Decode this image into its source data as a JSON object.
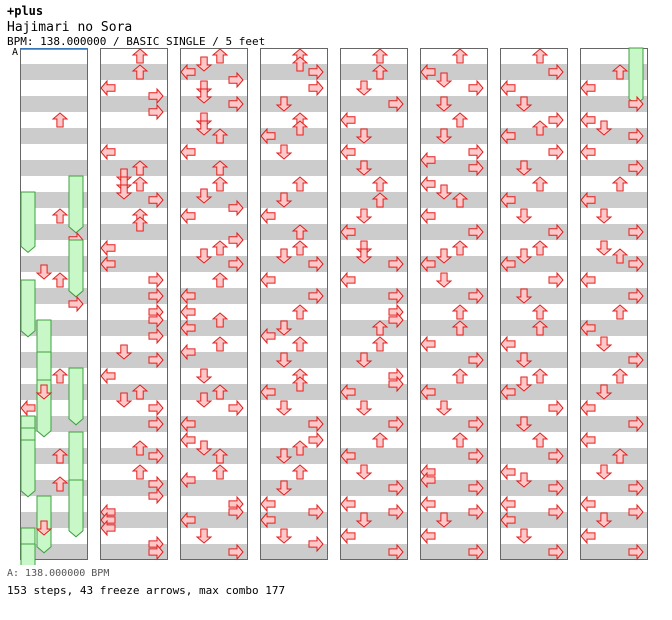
{
  "header": {
    "brand": "+plus",
    "title": "Hajimari no Sora",
    "bpm_info": "BPM: 138.000000 / BASIC SINGLE / 5 feet",
    "bpm_marker": "A"
  },
  "footer": {
    "bpm_line": "A: 138.000000 BPM",
    "stats_line": "153 steps, 43 freeze arrows, max combo 177"
  },
  "colors": {
    "stripe_gray": "#cccccc",
    "stripe_white": "#ffffff",
    "arrow_fill": "#ffc8c8",
    "arrow_stroke": "#e02020",
    "freeze_fill": "#c8f8c8",
    "freeze_stroke": "#40a040",
    "border": "#666666",
    "bpm_line": "#2a7fd4"
  },
  "chart_data": {
    "type": "step_chart",
    "lanes": [
      "left",
      "down",
      "up",
      "right"
    ],
    "columns": 8,
    "measures_per_column": 8,
    "steps_per_measure": 16,
    "notes": [
      [
        2,
        0.0,
        "U"
      ],
      [
        3,
        0.0,
        "F",
        3.82
      ],
      [
        3,
        1.0,
        "F",
        8.91
      ],
      [
        3,
        2.0,
        "U"
      ],
      [
        3,
        3.5,
        "R"
      ],
      [
        3,
        4.0,
        "F",
        7.82
      ],
      [
        3,
        6.5,
        "F",
        8.82
      ],
      [
        4,
        0.0,
        "F",
        7.82
      ],
      [
        4,
        1.5,
        "D"
      ],
      [
        4,
        2.0,
        "U"
      ],
      [
        4,
        3.5,
        "R"
      ],
      [
        5,
        1.0,
        "F",
        5.82
      ],
      [
        5,
        3.0,
        "F",
        5.82
      ],
      [
        5,
        4.0,
        "U"
      ],
      [
        5,
        6.0,
        "L"
      ],
      [
        6,
        0.0,
        "F",
        7.82
      ],
      [
        6,
        0.75,
        "F",
        1.82
      ],
      [
        6,
        1.0,
        "D"
      ],
      [
        6,
        3.0,
        "F",
        8.82
      ],
      [
        6,
        3.75,
        "F",
        4.82
      ],
      [
        7,
        0.0,
        "F",
        7.82
      ],
      [
        7,
        0.5,
        "F",
        8.82
      ],
      [
        7,
        1.0,
        "U"
      ],
      [
        7,
        2.75,
        "U"
      ],
      [
        7,
        3.0,
        "F",
        7.82
      ],
      [
        8,
        0.0,
        "F",
        1.82
      ],
      [
        8,
        1.5,
        "D"
      ],
      [
        8,
        2.0,
        "F",
        8.82
      ],
      [
        8,
        3.0,
        "F",
        8.82
      ],
      [
        9,
        0.0,
        "U"
      ],
      [
        9,
        1.0,
        "U"
      ],
      [
        9,
        2.0,
        "L"
      ],
      [
        9,
        2.5,
        "R"
      ],
      [
        9,
        3.5,
        "R"
      ],
      [
        10,
        2.0,
        "L"
      ],
      [
        10,
        3.0,
        "U"
      ],
      [
        10,
        3.5,
        "D"
      ],
      [
        10,
        4.0,
        "D"
      ],
      [
        11,
        0.0,
        "U"
      ],
      [
        11,
        0.5,
        "D"
      ],
      [
        11,
        1.0,
        "R"
      ],
      [
        11,
        2.0,
        "U"
      ],
      [
        11,
        2.5,
        "U"
      ],
      [
        12,
        0.0,
        "L"
      ],
      [
        12,
        1.0,
        "L"
      ],
      [
        12,
        2.0,
        "R"
      ],
      [
        12,
        3.0,
        "R"
      ],
      [
        13,
        0.0,
        "R"
      ],
      [
        13,
        0.5,
        "R"
      ],
      [
        13,
        1.5,
        "R"
      ],
      [
        13,
        2.5,
        "D"
      ],
      [
        13,
        3.0,
        "R"
      ],
      [
        14,
        0.0,
        "L"
      ],
      [
        14,
        1.0,
        "U"
      ],
      [
        14,
        1.5,
        "D"
      ],
      [
        14,
        2.0,
        "R"
      ],
      [
        14,
        3.0,
        "R"
      ],
      [
        15,
        0.5,
        "U"
      ],
      [
        15,
        1.0,
        "R"
      ],
      [
        15,
        2.0,
        "U"
      ],
      [
        15,
        2.75,
        "R"
      ],
      [
        15,
        3.5,
        "R"
      ],
      [
        16,
        0.5,
        "L"
      ],
      [
        16,
        1.0,
        "L"
      ],
      [
        16,
        1.5,
        "L"
      ],
      [
        16,
        2.5,
        "R"
      ],
      [
        16,
        3.0,
        "R"
      ],
      [
        17,
        0.0,
        "U"
      ],
      [
        17,
        0.5,
        "D"
      ],
      [
        17,
        1.0,
        "L"
      ],
      [
        17,
        1.5,
        "R"
      ],
      [
        17,
        2.0,
        "D"
      ],
      [
        17,
        2.5,
        "D"
      ],
      [
        17,
        3.0,
        "R"
      ],
      [
        18,
        0.0,
        "D"
      ],
      [
        18,
        0.5,
        "D"
      ],
      [
        18,
        1.0,
        "U"
      ],
      [
        18,
        2.0,
        "L"
      ],
      [
        18,
        3.0,
        "U"
      ],
      [
        19,
        0.0,
        "U"
      ],
      [
        19,
        0.75,
        "D"
      ],
      [
        19,
        1.5,
        "R"
      ],
      [
        19,
        2.0,
        "L"
      ],
      [
        19,
        3.5,
        "R"
      ],
      [
        20,
        0.0,
        "U"
      ],
      [
        20,
        0.5,
        "D"
      ],
      [
        20,
        1.0,
        "R"
      ],
      [
        20,
        2.0,
        "U"
      ],
      [
        20,
        3.0,
        "L"
      ],
      [
        21,
        0.0,
        "L"
      ],
      [
        21,
        0.5,
        "U"
      ],
      [
        21,
        1.0,
        "L"
      ],
      [
        21,
        2.0,
        "U"
      ],
      [
        21,
        2.5,
        "L"
      ],
      [
        22,
        0.0,
        "D"
      ],
      [
        22,
        1.0,
        "U"
      ],
      [
        22,
        1.5,
        "D"
      ],
      [
        22,
        2.0,
        "R"
      ],
      [
        22,
        3.0,
        "L"
      ],
      [
        23,
        0.0,
        "L"
      ],
      [
        23,
        0.5,
        "D"
      ],
      [
        23,
        1.0,
        "U"
      ],
      [
        23,
        2.0,
        "U"
      ],
      [
        23,
        2.5,
        "L"
      ],
      [
        24,
        0.0,
        "R"
      ],
      [
        24,
        0.5,
        "R"
      ],
      [
        24,
        1.0,
        "L"
      ],
      [
        24,
        2.0,
        "D"
      ],
      [
        24,
        3.0,
        "R"
      ],
      [
        25,
        0.0,
        "U"
      ],
      [
        25,
        0.5,
        "U"
      ],
      [
        25,
        1.0,
        "R"
      ],
      [
        25,
        2.0,
        "R"
      ],
      [
        25,
        3.0,
        "D"
      ],
      [
        26,
        0.0,
        "U"
      ],
      [
        26,
        0.5,
        "U"
      ],
      [
        26,
        1.0,
        "L"
      ],
      [
        26,
        2.0,
        "D"
      ],
      [
        27,
        0.0,
        "U"
      ],
      [
        27,
        1.0,
        "D"
      ],
      [
        27,
        2.0,
        "L"
      ],
      [
        27,
        3.0,
        "U"
      ],
      [
        28,
        0.0,
        "U"
      ],
      [
        28,
        0.5,
        "D"
      ],
      [
        28,
        1.0,
        "R"
      ],
      [
        28,
        2.0,
        "L"
      ],
      [
        28,
        3.0,
        "R"
      ],
      [
        29,
        0.0,
        "U"
      ],
      [
        29,
        1.0,
        "D"
      ],
      [
        29,
        1.5,
        "L"
      ],
      [
        29,
        2.0,
        "U"
      ],
      [
        29,
        3.0,
        "D"
      ],
      [
        30,
        0.0,
        "U"
      ],
      [
        30,
        0.5,
        "U"
      ],
      [
        30,
        1.0,
        "L"
      ],
      [
        30,
        2.0,
        "D"
      ],
      [
        30,
        3.0,
        "R"
      ],
      [
        31,
        0.0,
        "R"
      ],
      [
        31,
        0.5,
        "U"
      ],
      [
        31,
        1.0,
        "D"
      ],
      [
        31,
        2.0,
        "U"
      ],
      [
        31,
        3.0,
        "D"
      ],
      [
        32,
        0.0,
        "L"
      ],
      [
        32,
        0.5,
        "R"
      ],
      [
        32,
        1.0,
        "L"
      ],
      [
        32,
        2.0,
        "D"
      ],
      [
        32,
        2.5,
        "R"
      ],
      [
        33,
        0.0,
        "U"
      ],
      [
        33,
        1.0,
        "U"
      ],
      [
        33,
        2.0,
        "D"
      ],
      [
        33,
        3.0,
        "R"
      ],
      [
        34,
        0.0,
        "L"
      ],
      [
        34,
        1.0,
        "D"
      ],
      [
        34,
        2.0,
        "L"
      ],
      [
        34,
        3.0,
        "D"
      ],
      [
        35,
        0.0,
        "U"
      ],
      [
        35,
        1.0,
        "U"
      ],
      [
        35,
        2.0,
        "D"
      ],
      [
        35,
        3.0,
        "L"
      ],
      [
        36,
        0.0,
        "D"
      ],
      [
        36,
        0.5,
        "D"
      ],
      [
        36,
        1.0,
        "R"
      ],
      [
        36,
        2.0,
        "L"
      ],
      [
        36,
        3.0,
        "R"
      ],
      [
        37,
        0.0,
        "R"
      ],
      [
        37,
        0.5,
        "R"
      ],
      [
        37,
        1.0,
        "U"
      ],
      [
        37,
        2.0,
        "U"
      ],
      [
        37,
        3.0,
        "D"
      ],
      [
        38,
        0.0,
        "R"
      ],
      [
        38,
        0.5,
        "R"
      ],
      [
        38,
        1.0,
        "L"
      ],
      [
        38,
        2.0,
        "D"
      ],
      [
        38,
        3.0,
        "R"
      ],
      [
        39,
        0.0,
        "U"
      ],
      [
        39,
        1.0,
        "L"
      ],
      [
        39,
        2.0,
        "D"
      ],
      [
        39,
        3.0,
        "R"
      ],
      [
        40,
        0.0,
        "L"
      ],
      [
        40,
        0.5,
        "R"
      ],
      [
        40,
        1.0,
        "D"
      ],
      [
        40,
        2.0,
        "L"
      ],
      [
        40,
        3.0,
        "R"
      ],
      [
        41,
        0.0,
        "U"
      ],
      [
        41,
        1.0,
        "L"
      ],
      [
        41,
        1.5,
        "D"
      ],
      [
        41,
        2.0,
        "R"
      ],
      [
        41,
        3.0,
        "D"
      ],
      [
        42,
        0.0,
        "U"
      ],
      [
        42,
        1.0,
        "D"
      ],
      [
        42,
        2.0,
        "R"
      ],
      [
        42,
        2.5,
        "L"
      ],
      [
        42,
        3.0,
        "R"
      ],
      [
        43,
        0.0,
        "L"
      ],
      [
        43,
        0.5,
        "D"
      ],
      [
        43,
        1.0,
        "U"
      ],
      [
        43,
        2.0,
        "L"
      ],
      [
        43,
        3.0,
        "R"
      ],
      [
        44,
        0.0,
        "U"
      ],
      [
        44,
        0.5,
        "D"
      ],
      [
        44,
        1.0,
        "L"
      ],
      [
        44,
        2.0,
        "D"
      ],
      [
        44,
        3.0,
        "R"
      ],
      [
        45,
        0.0,
        "U"
      ],
      [
        45,
        1.0,
        "U"
      ],
      [
        45,
        2.0,
        "L"
      ],
      [
        45,
        3.0,
        "R"
      ],
      [
        46,
        0.0,
        "U"
      ],
      [
        46,
        1.0,
        "L"
      ],
      [
        46,
        2.0,
        "D"
      ],
      [
        46,
        3.0,
        "R"
      ],
      [
        47,
        0.0,
        "U"
      ],
      [
        47,
        1.0,
        "R"
      ],
      [
        47,
        2.0,
        "L"
      ],
      [
        47,
        2.5,
        "L"
      ],
      [
        47,
        3.0,
        "R"
      ],
      [
        48,
        0.0,
        "L"
      ],
      [
        48,
        0.5,
        "R"
      ],
      [
        48,
        1.0,
        "D"
      ],
      [
        48,
        2.0,
        "L"
      ],
      [
        48,
        3.0,
        "R"
      ],
      [
        49,
        0.0,
        "U"
      ],
      [
        49,
        1.0,
        "R"
      ],
      [
        49,
        2.0,
        "L"
      ],
      [
        49,
        3.0,
        "D"
      ],
      [
        50,
        0.0,
        "R"
      ],
      [
        50,
        0.5,
        "U"
      ],
      [
        50,
        1.0,
        "L"
      ],
      [
        50,
        2.0,
        "R"
      ],
      [
        50,
        3.0,
        "D"
      ],
      [
        51,
        0.0,
        "U"
      ],
      [
        51,
        1.0,
        "L"
      ],
      [
        51,
        2.0,
        "D"
      ],
      [
        51,
        3.0,
        "R"
      ],
      [
        52,
        0.0,
        "U"
      ],
      [
        52,
        0.5,
        "D"
      ],
      [
        52,
        1.0,
        "L"
      ],
      [
        52,
        2.0,
        "R"
      ],
      [
        52,
        3.0,
        "D"
      ],
      [
        53,
        0.0,
        "U"
      ],
      [
        53,
        1.0,
        "U"
      ],
      [
        53,
        2.0,
        "L"
      ],
      [
        53,
        3.0,
        "D"
      ],
      [
        54,
        0.0,
        "U"
      ],
      [
        54,
        0.5,
        "D"
      ],
      [
        54,
        1.0,
        "L"
      ],
      [
        54,
        2.0,
        "R"
      ],
      [
        54,
        3.0,
        "D"
      ],
      [
        55,
        0.0,
        "U"
      ],
      [
        55,
        1.0,
        "R"
      ],
      [
        55,
        2.0,
        "L"
      ],
      [
        55,
        2.5,
        "D"
      ],
      [
        55,
        3.0,
        "R"
      ],
      [
        56,
        0.0,
        "L"
      ],
      [
        56,
        0.5,
        "R"
      ],
      [
        56,
        1.0,
        "L"
      ],
      [
        56,
        2.0,
        "D"
      ],
      [
        56,
        3.0,
        "R"
      ],
      [
        57,
        0.0,
        "F",
        3.82
      ],
      [
        57,
        1.0,
        "U"
      ],
      [
        57,
        2.0,
        "L"
      ],
      [
        57,
        3.0,
        "R"
      ],
      [
        58,
        0.0,
        "L"
      ],
      [
        58,
        0.5,
        "D"
      ],
      [
        58,
        1.0,
        "R"
      ],
      [
        58,
        2.0,
        "L"
      ],
      [
        58,
        3.0,
        "R"
      ],
      [
        59,
        0.0,
        "U"
      ],
      [
        59,
        1.0,
        "L"
      ],
      [
        59,
        2.0,
        "D"
      ],
      [
        59,
        3.0,
        "R"
      ],
      [
        60,
        0.0,
        "D"
      ],
      [
        60,
        0.5,
        "U"
      ],
      [
        60,
        1.0,
        "R"
      ],
      [
        60,
        2.0,
        "L"
      ],
      [
        60,
        3.0,
        "R"
      ],
      [
        61,
        0.0,
        "U"
      ],
      [
        61,
        1.0,
        "L"
      ],
      [
        61,
        2.0,
        "D"
      ],
      [
        61,
        3.0,
        "R"
      ],
      [
        62,
        0.0,
        "U"
      ],
      [
        62,
        1.0,
        "D"
      ],
      [
        62,
        2.0,
        "L"
      ],
      [
        62,
        3.0,
        "R"
      ],
      [
        63,
        0.0,
        "L"
      ],
      [
        63,
        1.0,
        "U"
      ],
      [
        63,
        2.0,
        "D"
      ],
      [
        63,
        3.0,
        "R"
      ],
      [
        64,
        0.0,
        "L"
      ],
      [
        64,
        0.5,
        "R"
      ],
      [
        64,
        1.0,
        "D"
      ],
      [
        64,
        2.0,
        "L"
      ],
      [
        64,
        3.0,
        "R"
      ]
    ]
  }
}
